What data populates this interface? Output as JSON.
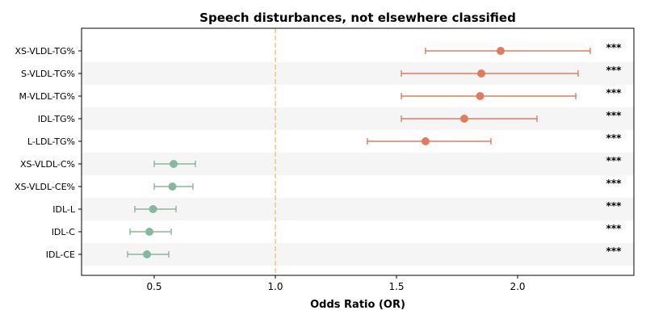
{
  "chart_data": {
    "type": "forest",
    "title": "Speech disturbances, not elsewhere classified",
    "xlabel": "Odds Ratio (OR)",
    "xlim": [
      0.2,
      2.48
    ],
    "xticks": [
      0.5,
      1.0,
      1.5,
      2.0
    ],
    "xtick_labels": [
      "0.5",
      "1.0",
      "1.5",
      "2.0"
    ],
    "reference_line": 1.0,
    "reference_line_color": "#f5c27a",
    "row_shading": "alternating",
    "colors": {
      "positive": "#e07b5f",
      "negative": "#85b89c",
      "band": "#f5f5f5"
    },
    "rows": [
      {
        "label": "XS-VLDL-TG%",
        "or": 1.93,
        "ci_low": 1.62,
        "ci_high": 2.3,
        "sig": "***",
        "group": "positive"
      },
      {
        "label": "S-VLDL-TG%",
        "or": 1.85,
        "ci_low": 1.52,
        "ci_high": 2.25,
        "sig": "***",
        "group": "positive"
      },
      {
        "label": "M-VLDL-TG%",
        "or": 1.845,
        "ci_low": 1.52,
        "ci_high": 2.24,
        "sig": "***",
        "group": "positive"
      },
      {
        "label": "IDL-TG%",
        "or": 1.78,
        "ci_low": 1.52,
        "ci_high": 2.08,
        "sig": "***",
        "group": "positive"
      },
      {
        "label": "L-LDL-TG%",
        "or": 1.62,
        "ci_low": 1.38,
        "ci_high": 1.89,
        "sig": "***",
        "group": "positive"
      },
      {
        "label": "XS-VLDL-C%",
        "or": 0.58,
        "ci_low": 0.5,
        "ci_high": 0.67,
        "sig": "***",
        "group": "negative"
      },
      {
        "label": "XS-VLDL-CE%",
        "or": 0.575,
        "ci_low": 0.5,
        "ci_high": 0.66,
        "sig": "***",
        "group": "negative"
      },
      {
        "label": "IDL-L",
        "or": 0.495,
        "ci_low": 0.42,
        "ci_high": 0.59,
        "sig": "***",
        "group": "negative"
      },
      {
        "label": "IDL-C",
        "or": 0.48,
        "ci_low": 0.4,
        "ci_high": 0.57,
        "sig": "***",
        "group": "negative"
      },
      {
        "label": "IDL-CE",
        "or": 0.47,
        "ci_low": 0.39,
        "ci_high": 0.56,
        "sig": "***",
        "group": "negative"
      }
    ]
  }
}
